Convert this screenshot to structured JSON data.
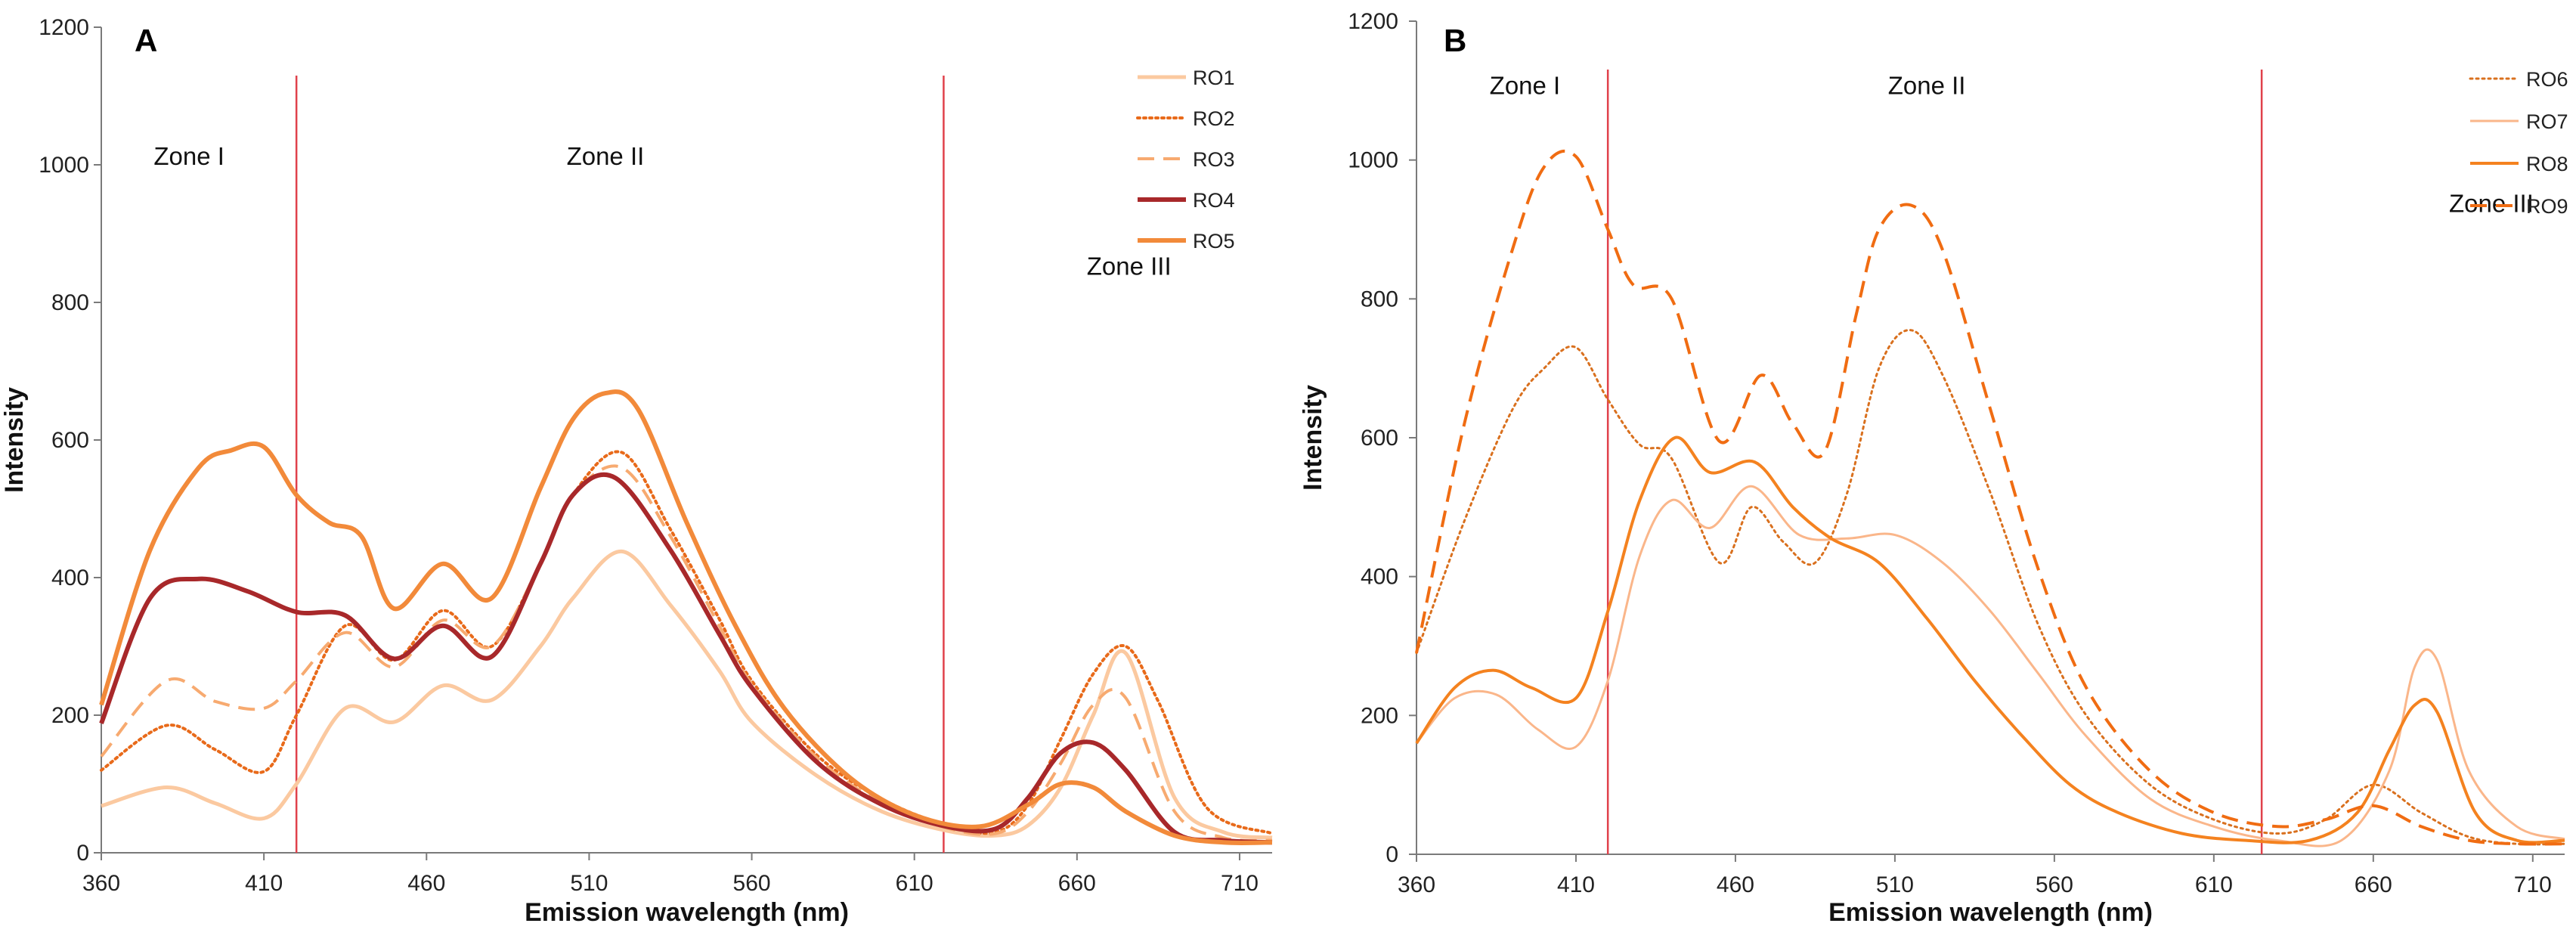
{
  "chart_data": [
    {
      "panel": "A",
      "type": "line",
      "xlabel": "Emission wavelength (nm)",
      "ylabel": "Intensity",
      "xlim": [
        360,
        720
      ],
      "ylim": [
        0,
        1200
      ],
      "xticks": [
        360,
        410,
        460,
        510,
        560,
        610,
        660,
        710
      ],
      "yticks": [
        0,
        200,
        400,
        600,
        800,
        1000,
        1200
      ],
      "grid": false,
      "legend": "top-right",
      "zone_lines": [
        420,
        619
      ],
      "zones": [
        {
          "label": "Zone I",
          "x": 387,
          "y": 1000
        },
        {
          "label": "Zone II",
          "x": 515,
          "y": 1000
        },
        {
          "label": "Zone III",
          "x": 676,
          "y": 840
        }
      ],
      "series": [
        {
          "name": "RO1",
          "color": "#fbc9a0",
          "dash": "solid",
          "width": 5,
          "x": [
            360,
            380,
            395,
            410,
            420,
            435,
            450,
            465,
            480,
            495,
            505,
            520,
            535,
            550,
            560,
            580,
            600,
            620,
            635,
            645,
            655,
            665,
            675,
            690,
            705,
            720
          ],
          "y": [
            68,
            95,
            72,
            50,
            100,
            210,
            190,
            243,
            222,
            300,
            370,
            438,
            360,
            265,
            190,
            112,
            60,
            32,
            25,
            40,
            95,
            200,
            290,
            80,
            30,
            22
          ]
        },
        {
          "name": "RO2",
          "color": "#e86a1a",
          "dash": "dotted",
          "width": 4,
          "x": [
            360,
            380,
            395,
            410,
            420,
            435,
            450,
            465,
            480,
            495,
            505,
            520,
            535,
            550,
            560,
            580,
            600,
            620,
            635,
            645,
            655,
            665,
            675,
            685,
            700,
            720
          ],
          "y": [
            120,
            185,
            150,
            118,
            200,
            330,
            280,
            352,
            300,
            420,
            520,
            582,
            470,
            340,
            250,
            142,
            78,
            40,
            30,
            70,
            165,
            260,
            300,
            220,
            65,
            28
          ]
        },
        {
          "name": "RO3",
          "color": "#f7aa70",
          "dash": "dashed",
          "width": 4,
          "x": [
            360,
            380,
            395,
            410,
            420,
            435,
            450,
            465,
            480,
            495,
            505,
            520,
            535,
            550,
            560,
            580,
            600,
            620,
            635,
            645,
            655,
            665,
            675,
            690,
            705,
            720
          ],
          "y": [
            140,
            250,
            220,
            210,
            250,
            320,
            270,
            338,
            300,
            420,
            520,
            560,
            460,
            330,
            245,
            138,
            72,
            36,
            28,
            60,
            130,
            215,
            225,
            60,
            22,
            18
          ]
        },
        {
          "name": "RO4",
          "color": "#a8282a",
          "dash": "solid",
          "width": 6,
          "x": [
            360,
            375,
            390,
            405,
            420,
            435,
            450,
            465,
            480,
            495,
            505,
            518,
            535,
            550,
            560,
            580,
            600,
            620,
            635,
            645,
            655,
            665,
            675,
            690,
            705,
            720
          ],
          "y": [
            188,
            370,
            398,
            380,
            350,
            345,
            282,
            330,
            285,
            420,
            520,
            545,
            440,
            318,
            240,
            132,
            70,
            38,
            35,
            80,
            145,
            160,
            120,
            30,
            18,
            15
          ]
        },
        {
          "name": "RO5",
          "color": "#f28a3a",
          "dash": "solid",
          "width": 6,
          "x": [
            360,
            375,
            390,
            400,
            410,
            420,
            430,
            440,
            450,
            465,
            480,
            495,
            505,
            515,
            525,
            540,
            555,
            570,
            590,
            610,
            630,
            645,
            655,
            665,
            675,
            690,
            705,
            720
          ],
          "y": [
            215,
            440,
            560,
            585,
            590,
            520,
            480,
            460,
            355,
            420,
            370,
            530,
            630,
            668,
            645,
            480,
            330,
            210,
            110,
            55,
            38,
            70,
            100,
            95,
            60,
            25,
            15,
            15
          ]
        }
      ]
    },
    {
      "panel": "B",
      "type": "line",
      "xlabel": "Emission wavelength (nm)",
      "ylabel": "Intensity",
      "xlim": [
        360,
        720
      ],
      "ylim": [
        0,
        1200
      ],
      "xticks": [
        360,
        410,
        460,
        510,
        560,
        610,
        660,
        710
      ],
      "yticks": [
        0,
        200,
        400,
        600,
        800,
        1000,
        1200
      ],
      "grid": false,
      "legend": "top-right",
      "zone_lines": [
        420,
        625
      ],
      "zones": [
        {
          "label": "Zone I",
          "x": 394,
          "y": 1095
        },
        {
          "label": "Zone II",
          "x": 520,
          "y": 1095
        },
        {
          "label": "Zone III",
          "x": 697,
          "y": 925
        }
      ],
      "series": [
        {
          "name": "RO6",
          "color": "#d9701e",
          "dash": "dotted",
          "width": 3,
          "x": [
            360,
            375,
            390,
            400,
            410,
            420,
            430,
            440,
            455,
            465,
            475,
            485,
            495,
            505,
            515,
            525,
            540,
            555,
            570,
            590,
            610,
            630,
            645,
            660,
            675,
            690,
            705,
            720
          ],
          "y": [
            290,
            480,
            640,
            700,
            730,
            655,
            590,
            570,
            420,
            500,
            450,
            420,
            520,
            700,
            755,
            690,
            520,
            330,
            200,
            100,
            50,
            30,
            50,
            100,
            60,
            25,
            15,
            15
          ]
        },
        {
          "name": "RO7",
          "color": "#fab68a",
          "dash": "solid",
          "width": 3,
          "x": [
            360,
            372,
            385,
            398,
            410,
            420,
            430,
            440,
            452,
            465,
            480,
            495,
            510,
            525,
            540,
            555,
            570,
            590,
            610,
            630,
            650,
            665,
            673,
            680,
            690,
            705,
            720
          ],
          "y": [
            160,
            225,
            230,
            180,
            155,
            250,
            430,
            510,
            470,
            530,
            460,
            455,
            460,
            420,
            350,
            260,
            170,
            80,
            40,
            20,
            20,
            120,
            270,
            280,
            120,
            40,
            22
          ]
        },
        {
          "name": "RO8",
          "color": "#f4821f",
          "dash": "solid",
          "width": 4,
          "x": [
            360,
            372,
            384,
            396,
            410,
            420,
            430,
            441,
            452,
            466,
            478,
            490,
            505,
            520,
            535,
            550,
            565,
            580,
            600,
            620,
            640,
            655,
            665,
            673,
            680,
            692,
            705,
            720
          ],
          "y": [
            160,
            240,
            265,
            240,
            225,
            350,
            510,
            600,
            550,
            565,
            500,
            455,
            420,
            340,
            250,
            170,
            100,
            60,
            30,
            20,
            20,
            60,
            150,
            215,
            205,
            60,
            20,
            20
          ]
        },
        {
          "name": "RO9",
          "color": "#f06c12",
          "dash": "dashed",
          "width": 4,
          "x": [
            360,
            375,
            390,
            400,
            410,
            420,
            428,
            440,
            455,
            468,
            478,
            488,
            498,
            505,
            515,
            525,
            540,
            555,
            570,
            590,
            610,
            630,
            645,
            660,
            675,
            690,
            705,
            720
          ],
          "y": [
            290,
            620,
            870,
            990,
            1005,
            900,
            820,
            800,
            595,
            690,
            620,
            580,
            780,
            900,
            935,
            870,
            640,
            410,
            240,
            120,
            60,
            40,
            50,
            70,
            40,
            20,
            15,
            15
          ]
        }
      ]
    }
  ]
}
